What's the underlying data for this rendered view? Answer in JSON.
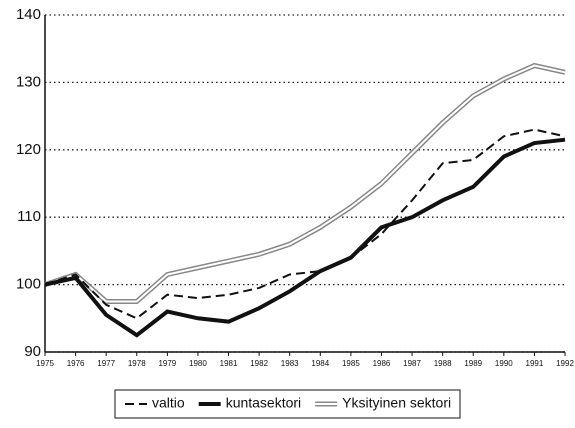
{
  "chart_data": {
    "type": "line",
    "x": [
      1975,
      1976,
      1977,
      1978,
      1979,
      1980,
      1981,
      1982,
      1983,
      1984,
      1985,
      1986,
      1987,
      1988,
      1989,
      1990,
      1991,
      1992
    ],
    "xlim": [
      1975,
      1992
    ],
    "xticks": [
      1975,
      1976,
      1977,
      1978,
      1979,
      1980,
      1981,
      1982,
      1983,
      1984,
      1985,
      1986,
      1987,
      1988,
      1989,
      1990,
      1991,
      1992
    ],
    "ylim": [
      90,
      140
    ],
    "yticks": [
      90,
      100,
      110,
      120,
      130,
      140
    ],
    "grid": true,
    "legend": "bottom",
    "series": [
      {
        "name": "valtio",
        "color": "#111111",
        "style": "dashed",
        "values": [
          100,
          101.5,
          97,
          95,
          98.5,
          98,
          98.5,
          99.5,
          101.5,
          102,
          104,
          107.5,
          112.5,
          118,
          118.5,
          122,
          123,
          122
        ]
      },
      {
        "name": "kuntasektori",
        "color": "#111111",
        "style": "solid",
        "values": [
          100,
          101,
          95.5,
          92.5,
          96,
          95,
          94.5,
          96.5,
          99,
          102,
          104,
          108.5,
          110,
          112.5,
          114.5,
          119,
          121,
          121.5
        ]
      },
      {
        "name": "Yksityinen sektori",
        "color": "#888888",
        "style": "double",
        "values": [
          100,
          101.5,
          97.5,
          97.5,
          101.5,
          102.5,
          103.5,
          104.5,
          106,
          108.5,
          111.5,
          115,
          119.5,
          124,
          128,
          130.5,
          132.5,
          131.5
        ]
      }
    ]
  }
}
